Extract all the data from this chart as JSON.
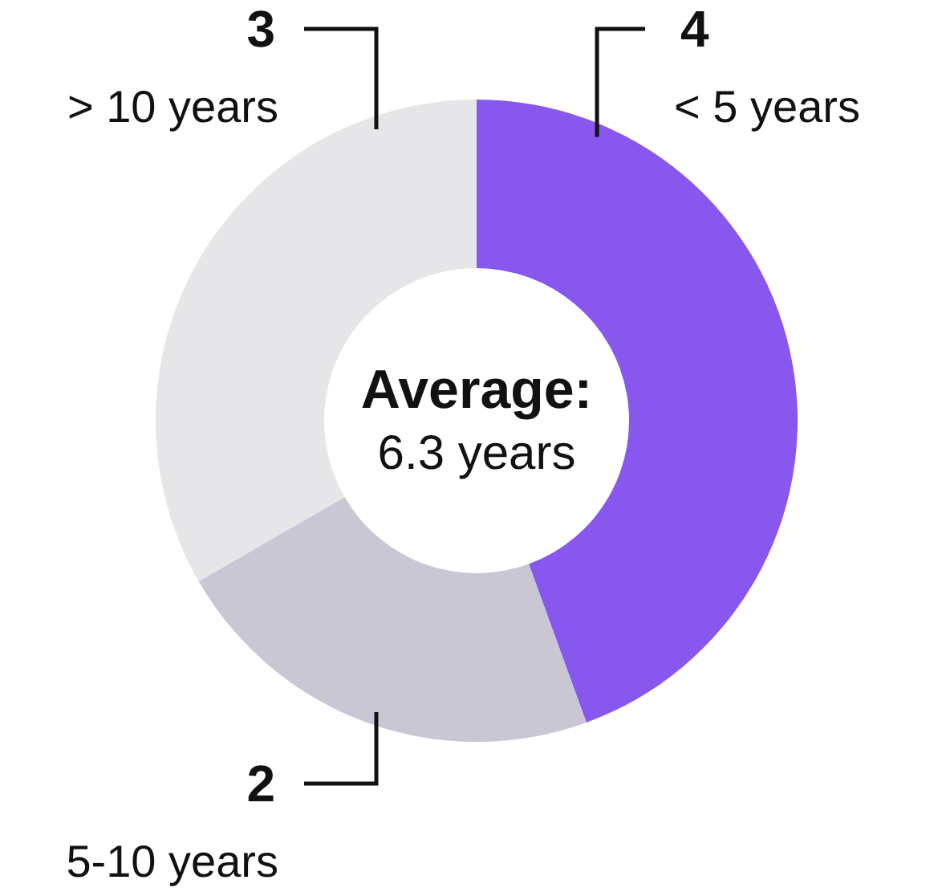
{
  "chart_data": {
    "type": "donut",
    "categories": [
      "< 5 years",
      "5-10 years",
      "> 10 years"
    ],
    "values": [
      4,
      2,
      3
    ],
    "colors": [
      "#8757ee",
      "#c9c7d4",
      "#e6e6e9"
    ],
    "data_labels": true,
    "annotations": [
      "Average:",
      "6.3 years"
    ]
  }
}
